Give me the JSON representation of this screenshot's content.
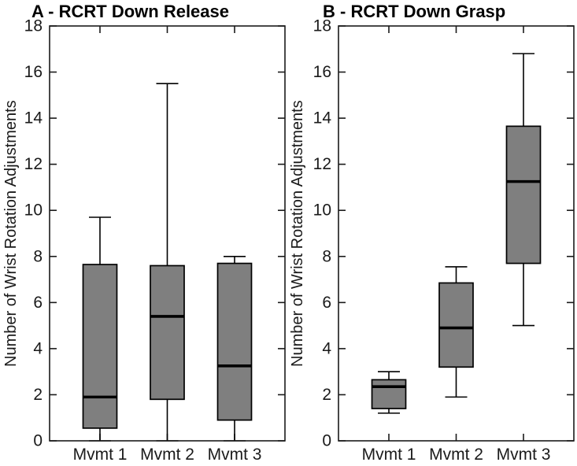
{
  "figure": {
    "background": "#ffffff"
  },
  "style": {
    "box_fill": "#7f7f7f",
    "box_edge": "#000000",
    "median_color": "#000000",
    "whisker_color": "#000000",
    "axis_color": "#1a1a1a",
    "text_color": "#1a1a1a"
  },
  "chart_data": [
    {
      "type": "boxplot",
      "panel": "A",
      "title": "A - RCRT Down Release",
      "ylabel": "Number of Wrist Rotation Adjustments",
      "xlabel": "",
      "categories": [
        "Mvmt 1",
        "Mvmt 2",
        "Mvmt 3"
      ],
      "ylim": [
        0,
        18
      ],
      "ytick_step": 2,
      "yticks": [
        0,
        2,
        4,
        6,
        8,
        10,
        12,
        14,
        16,
        18
      ],
      "grid": false,
      "boxes": [
        {
          "category": "Mvmt 1",
          "whisker_low": 0,
          "q1": 0.55,
          "median": 1.9,
          "q3": 7.65,
          "whisker_high": 9.7
        },
        {
          "category": "Mvmt 2",
          "whisker_low": 0,
          "q1": 1.8,
          "median": 5.4,
          "q3": 7.6,
          "whisker_high": 15.5
        },
        {
          "category": "Mvmt 3",
          "whisker_low": 0,
          "q1": 0.9,
          "median": 3.25,
          "q3": 7.7,
          "whisker_high": 8.0
        }
      ]
    },
    {
      "type": "boxplot",
      "panel": "B",
      "title": "B - RCRT Down Grasp",
      "ylabel": "Number of Wrist Rotation Adjustments",
      "xlabel": "",
      "categories": [
        "Mvmt 1",
        "Mvmt 2",
        "Mvmt 3"
      ],
      "ylim": [
        0,
        18
      ],
      "ytick_step": 2,
      "yticks": [
        0,
        2,
        4,
        6,
        8,
        10,
        12,
        14,
        16,
        18
      ],
      "grid": false,
      "boxes": [
        {
          "category": "Mvmt 1",
          "whisker_low": 1.2,
          "q1": 1.4,
          "median": 2.35,
          "q3": 2.65,
          "whisker_high": 3.0
        },
        {
          "category": "Mvmt 2",
          "whisker_low": 1.9,
          "q1": 3.2,
          "median": 4.9,
          "q3": 6.85,
          "whisker_high": 7.55
        },
        {
          "category": "Mvmt 3",
          "whisker_low": 5.0,
          "q1": 7.7,
          "median": 11.25,
          "q3": 13.65,
          "whisker_high": 16.8
        }
      ]
    }
  ]
}
